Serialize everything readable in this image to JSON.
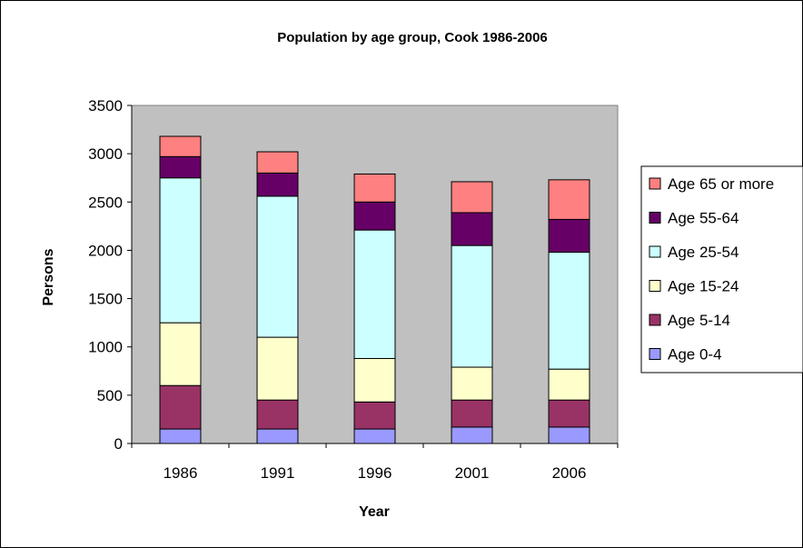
{
  "chart_data": {
    "type": "bar",
    "stacked": true,
    "title": "Population by age group, Cook 1986-2006",
    "xlabel": "Year",
    "ylabel": "Persons",
    "ylim": [
      0,
      3500
    ],
    "yticks": [
      0,
      500,
      1000,
      1500,
      2000,
      2500,
      3000,
      3500
    ],
    "categories": [
      "1986",
      "1991",
      "1996",
      "2001",
      "2006"
    ],
    "grid": false,
    "plot_background": "#c0c0c0",
    "legend_position": "right",
    "series": [
      {
        "name": "Age 0-4",
        "color": "#9999ff",
        "values": [
          150,
          150,
          150,
          170,
          170
        ]
      },
      {
        "name": "Age 5-14",
        "color": "#993366",
        "values": [
          450,
          300,
          280,
          280,
          280
        ]
      },
      {
        "name": "Age 15-24",
        "color": "#ffffcc",
        "values": [
          650,
          650,
          450,
          340,
          320
        ]
      },
      {
        "name": "Age 25-54",
        "color": "#ccffff",
        "values": [
          1500,
          1460,
          1330,
          1260,
          1210
        ]
      },
      {
        "name": "Age 55-64",
        "color": "#660066",
        "values": [
          220,
          240,
          290,
          340,
          340
        ]
      },
      {
        "name": "Age 65 or more",
        "color": "#ff8080",
        "values": [
          210,
          220,
          290,
          320,
          410
        ]
      }
    ]
  }
}
